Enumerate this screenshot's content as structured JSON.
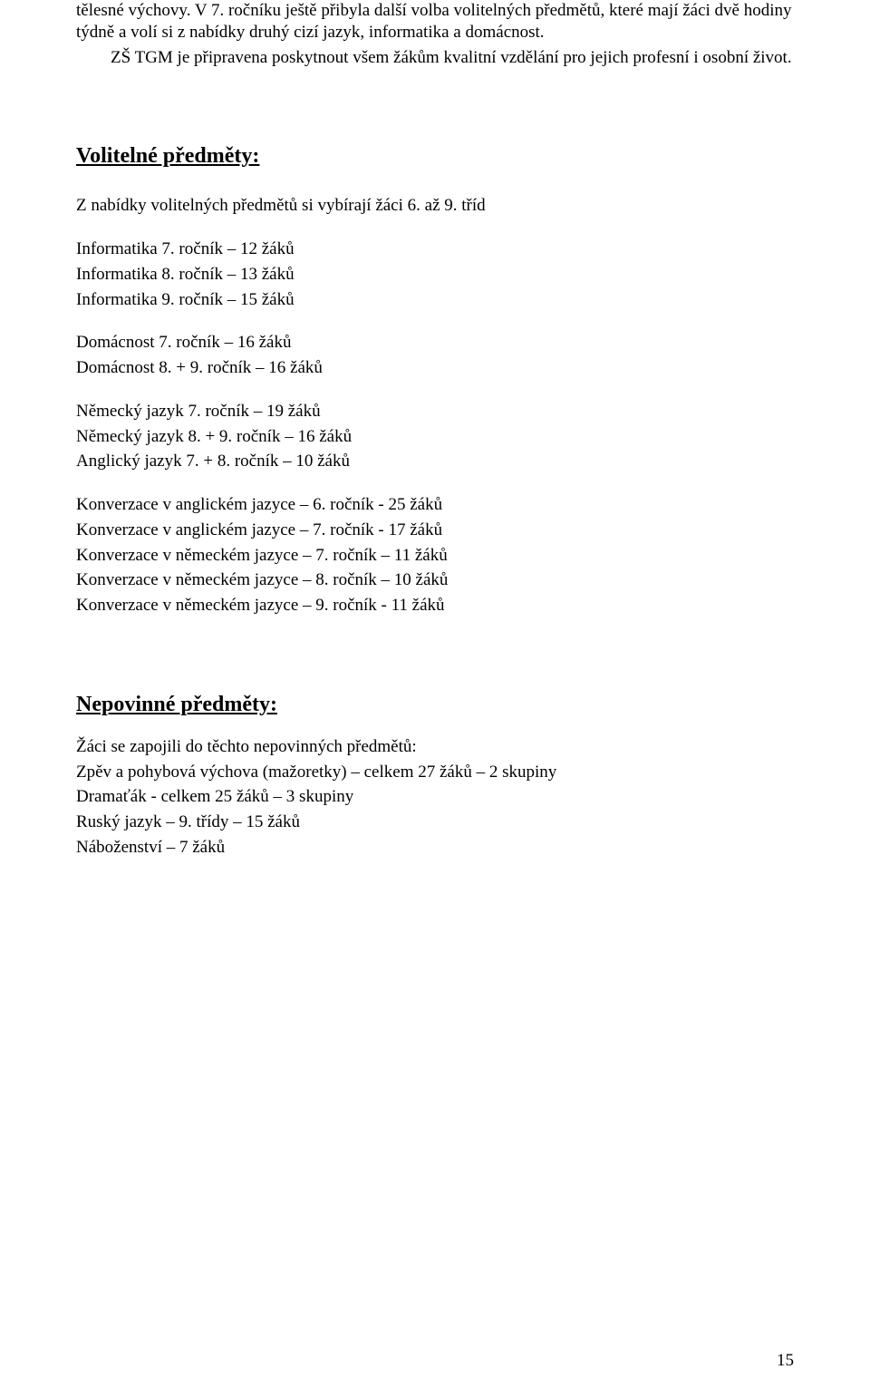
{
  "intro": {
    "p1": "tělesné výchovy. V 7. ročníku ještě přibyla další volba volitelných předmětů, které mají žáci dvě hodiny týdně a volí si z nabídky druhý cizí jazyk, informatika a domácnost.",
    "p2": "ZŠ TGM je připravena poskytnout všem žákům kvalitní vzdělání pro jejich profesní i osobní život."
  },
  "volitelne": {
    "heading": "Volitelné předměty:",
    "sub": "Z nabídky volitelných předmětů si vybírají žáci 6. až 9. tříd",
    "informatika": {
      "l1": "Informatika 7. ročník – 12 žáků",
      "l2": "Informatika 8. ročník – 13 žáků",
      "l3": "Informatika 9. ročník – 15 žáků"
    },
    "domacnost": {
      "l1": "Domácnost 7. ročník – 16 žáků",
      "l2": "Domácnost 8. + 9. ročník – 16 žáků"
    },
    "jazyk": {
      "l1": "Německý jazyk  7. ročník – 19 žáků",
      "l2": "Německý jazyk 8. + 9. ročník – 16 žáků",
      "l3": "Anglický jazyk 7. + 8. ročník – 10 žáků"
    },
    "konverzace": {
      "l1": "Konverzace v anglickém jazyce – 6. ročník - 25 žáků",
      "l2": "Konverzace v anglickém jazyce – 7. ročník -  17 žáků",
      "l3": "Konverzace v německém jazyce – 7. ročník – 11 žáků",
      "l4": "Konverzace v německém jazyce – 8. ročník – 10 žáků",
      "l5": "Konverzace v německém jazyce – 9. ročník  - 11 žáků"
    }
  },
  "nepovinne": {
    "heading": "Nepovinné předměty:",
    "sub": "Žáci se zapojili do těchto nepovinných předmětů:",
    "l1": "Zpěv a pohybová výchova (mažoretky) – celkem 27 žáků – 2 skupiny",
    "l2": "Dramaťák  - celkem 25 žáků – 3 skupiny",
    "l3": "Ruský jazyk – 9. třídy – 15 žáků",
    "l4": "Náboženství – 7 žáků"
  },
  "pageNumber": "15"
}
